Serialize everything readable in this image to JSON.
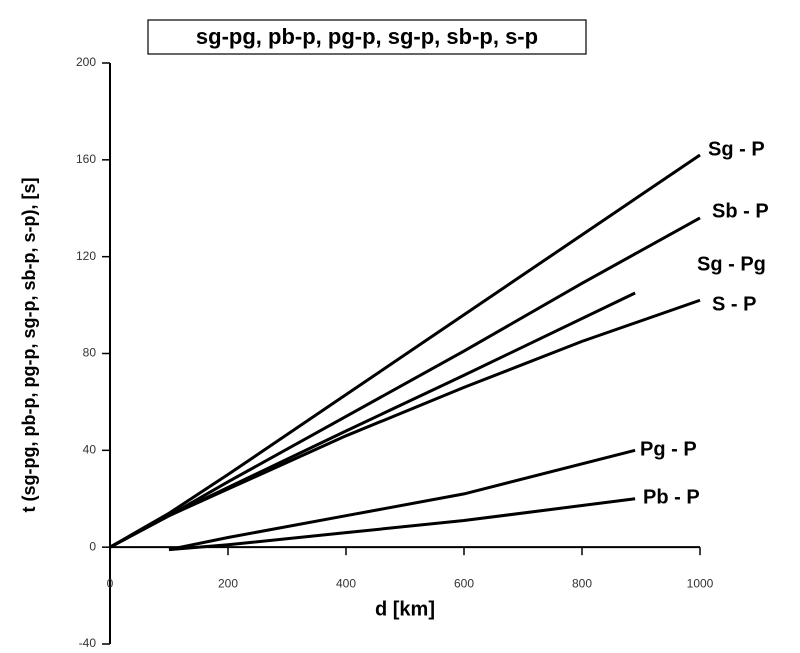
{
  "chart_data": {
    "type": "line",
    "title": "sg-pg, pb-p, pg-p, sg-p, sb-p, s-p",
    "x_label": "d [km]",
    "y_label": "t (sg-pg, pb-p, pg-p, sg-p, sb-p, s-p), [s]",
    "xlim": [
      0,
      1000
    ],
    "xticks": [
      0,
      200,
      400,
      600,
      800,
      1000
    ],
    "ylim": [
      -40,
      200
    ],
    "yticks": [
      -40,
      0,
      40,
      80,
      120,
      160,
      200
    ],
    "series": [
      {
        "name": "Sg - P",
        "color": "#000000",
        "x": [
          0,
          100,
          200,
          400,
          600,
          800,
          1000
        ],
        "values": [
          0,
          14,
          30,
          63,
          96,
          129,
          162
        ]
      },
      {
        "name": "Sb - P",
        "color": "#000000",
        "x": [
          0,
          100,
          200,
          400,
          600,
          800,
          1000
        ],
        "values": [
          0,
          13,
          27,
          54,
          81,
          109,
          136
        ]
      },
      {
        "name": "Sg - Pg",
        "color": "#000000",
        "x": [
          0,
          100,
          400,
          600,
          890
        ],
        "values": [
          0,
          13,
          48,
          71,
          105
        ]
      },
      {
        "name": "S - P",
        "color": "#000000",
        "x": [
          0,
          100,
          200,
          400,
          600,
          800,
          1000
        ],
        "values": [
          0,
          13,
          24,
          46,
          66,
          85,
          102
        ]
      },
      {
        "name": "Pg - P",
        "color": "#000000",
        "x": [
          100,
          200,
          400,
          600,
          890
        ],
        "values": [
          -1,
          4,
          13,
          22,
          40
        ]
      },
      {
        "name": "Pb - P",
        "color": "#000000",
        "x": [
          100,
          200,
          400,
          600,
          890
        ],
        "values": [
          -1,
          1,
          6,
          11,
          20
        ]
      }
    ]
  }
}
